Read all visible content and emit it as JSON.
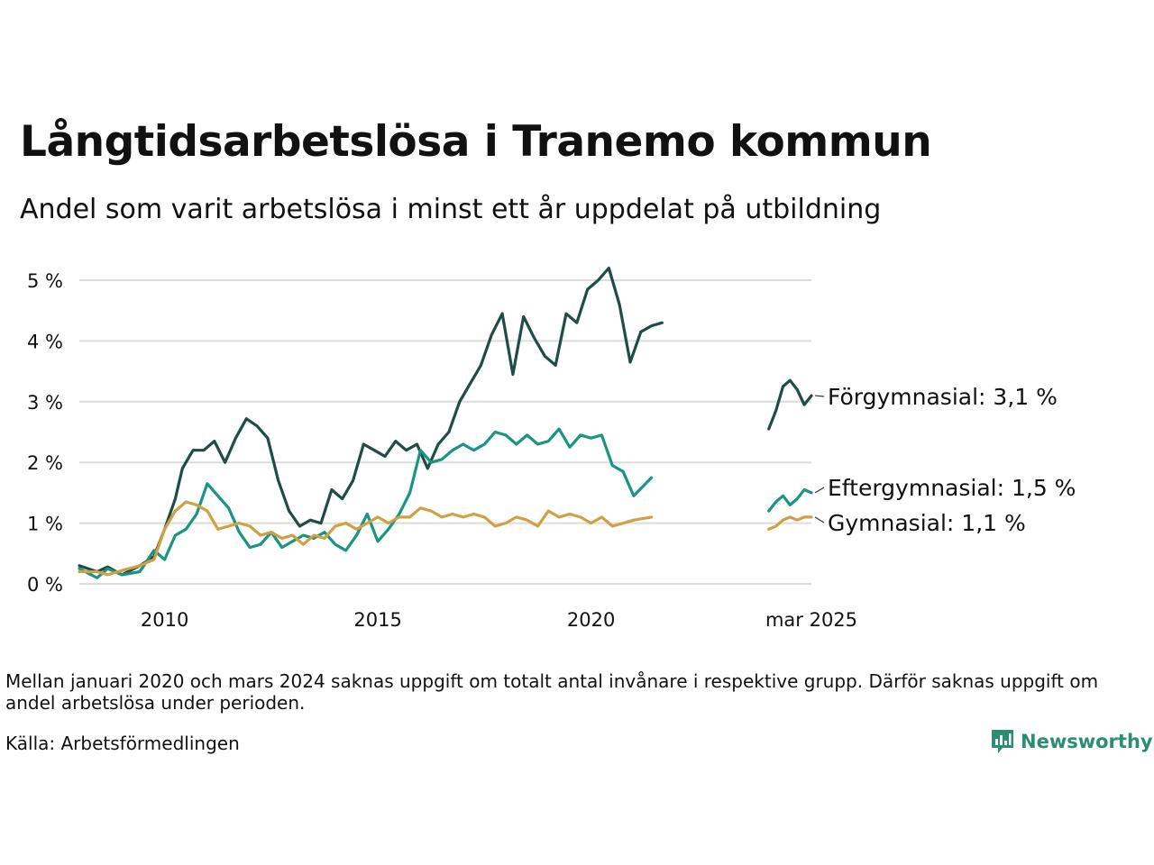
{
  "header": {
    "title": "Långtidsarbetslösa i Tranemo kommun",
    "subtitle": "Andel som varit arbetslösa i minst ett år uppdelat på utbildning"
  },
  "footer": {
    "note": "Mellan januari 2020 och mars 2024 saknas uppgift om totalt antal invånare i respektive grupp. Därför saknas uppgift om andel arbetslösa under perioden.",
    "source": "Källa: Arbetsförmedlingen",
    "logo_text": "Newsworthy",
    "logo_icon": "bar-chart-icon"
  },
  "chart_data": {
    "type": "line",
    "xlabel": "",
    "ylabel": "",
    "ylim": [
      0,
      5
    ],
    "xlim": [
      "2008-01",
      "2025-03"
    ],
    "grid": true,
    "y_ticks": [
      "0 %",
      "1 %",
      "2 %",
      "3 %",
      "4 %",
      "5 %"
    ],
    "x_ticks": [
      {
        "label": "2010",
        "date": "2010-01"
      },
      {
        "label": "2015",
        "date": "2015-01"
      },
      {
        "label": "2020",
        "date": "2020-01"
      },
      {
        "label": "mar 2025",
        "date": "2025-03"
      }
    ],
    "series": [
      {
        "name": "Förgymnasial",
        "end_label": "Förgymnasial: 3,1 %",
        "color": "#1f4d45",
        "segments": [
          [
            [
              "2008-01",
              0.3
            ],
            [
              "2008-06",
              0.2
            ],
            [
              "2008-09",
              0.28
            ],
            [
              "2009-01",
              0.15
            ],
            [
              "2009-06",
              0.3
            ],
            [
              "2009-10",
              0.45
            ],
            [
              "2010-01",
              0.9
            ],
            [
              "2010-04",
              1.4
            ],
            [
              "2010-06",
              1.9
            ],
            [
              "2010-09",
              2.2
            ],
            [
              "2010-12",
              2.2
            ],
            [
              "2011-03",
              2.35
            ],
            [
              "2011-06",
              2.0
            ],
            [
              "2011-09",
              2.4
            ],
            [
              "2011-12",
              2.72
            ],
            [
              "2012-03",
              2.6
            ],
            [
              "2012-06",
              2.4
            ],
            [
              "2012-09",
              1.7
            ],
            [
              "2012-12",
              1.2
            ],
            [
              "2013-03",
              0.95
            ],
            [
              "2013-06",
              1.05
            ],
            [
              "2013-09",
              1.0
            ],
            [
              "2013-12",
              1.55
            ],
            [
              "2014-03",
              1.4
            ],
            [
              "2014-06",
              1.7
            ],
            [
              "2014-09",
              2.3
            ],
            [
              "2014-12",
              2.2
            ],
            [
              "2015-03",
              2.1
            ],
            [
              "2015-06",
              2.35
            ],
            [
              "2015-09",
              2.2
            ],
            [
              "2015-12",
              2.3
            ],
            [
              "2016-03",
              1.9
            ],
            [
              "2016-06",
              2.3
            ],
            [
              "2016-09",
              2.5
            ],
            [
              "2016-12",
              3.0
            ],
            [
              "2017-03",
              3.3
            ],
            [
              "2017-06",
              3.6
            ],
            [
              "2017-09",
              4.1
            ],
            [
              "2017-12",
              4.45
            ],
            [
              "2018-03",
              3.45
            ],
            [
              "2018-06",
              4.4
            ],
            [
              "2018-09",
              4.05
            ],
            [
              "2018-12",
              3.75
            ],
            [
              "2019-03",
              3.6
            ],
            [
              "2019-06",
              4.45
            ],
            [
              "2019-09",
              4.3
            ],
            [
              "2019-12",
              4.85
            ],
            [
              "2020-03",
              5.0
            ],
            [
              "2020-06",
              5.2
            ],
            [
              "2020-09",
              4.6
            ],
            [
              "2020-12",
              3.65
            ],
            [
              "2021-03",
              4.15
            ],
            [
              "2021-06",
              4.25
            ],
            [
              "2021-09",
              4.3
            ]
          ],
          [
            [
              "2024-03",
              2.55
            ],
            [
              "2024-05",
              2.85
            ],
            [
              "2024-07",
              3.25
            ],
            [
              "2024-09",
              3.35
            ],
            [
              "2024-11",
              3.2
            ],
            [
              "2025-01",
              2.95
            ],
            [
              "2025-03",
              3.1
            ]
          ]
        ]
      },
      {
        "name": "Eftergymnasial",
        "end_label": "Eftergymnasial: 1,5 %",
        "color": "#1a9582",
        "segments": [
          [
            [
              "2008-01",
              0.25
            ],
            [
              "2008-06",
              0.1
            ],
            [
              "2008-09",
              0.25
            ],
            [
              "2009-01",
              0.15
            ],
            [
              "2009-06",
              0.2
            ],
            [
              "2009-10",
              0.55
            ],
            [
              "2010-01",
              0.4
            ],
            [
              "2010-04",
              0.8
            ],
            [
              "2010-07",
              0.9
            ],
            [
              "2010-10",
              1.15
            ],
            [
              "2011-01",
              1.65
            ],
            [
              "2011-04",
              1.45
            ],
            [
              "2011-07",
              1.25
            ],
            [
              "2011-10",
              0.85
            ],
            [
              "2012-01",
              0.6
            ],
            [
              "2012-04",
              0.65
            ],
            [
              "2012-07",
              0.85
            ],
            [
              "2012-10",
              0.6
            ],
            [
              "2013-01",
              0.7
            ],
            [
              "2013-04",
              0.8
            ],
            [
              "2013-07",
              0.75
            ],
            [
              "2013-10",
              0.85
            ],
            [
              "2014-01",
              0.65
            ],
            [
              "2014-04",
              0.55
            ],
            [
              "2014-07",
              0.8
            ],
            [
              "2014-10",
              1.15
            ],
            [
              "2015-01",
              0.7
            ],
            [
              "2015-04",
              0.9
            ],
            [
              "2015-07",
              1.15
            ],
            [
              "2015-10",
              1.5
            ],
            [
              "2016-01",
              2.2
            ],
            [
              "2016-04",
              2.0
            ],
            [
              "2016-07",
              2.05
            ],
            [
              "2016-10",
              2.2
            ],
            [
              "2017-01",
              2.3
            ],
            [
              "2017-04",
              2.2
            ],
            [
              "2017-07",
              2.3
            ],
            [
              "2017-10",
              2.5
            ],
            [
              "2018-01",
              2.45
            ],
            [
              "2018-04",
              2.3
            ],
            [
              "2018-07",
              2.45
            ],
            [
              "2018-10",
              2.3
            ],
            [
              "2019-01",
              2.35
            ],
            [
              "2019-04",
              2.55
            ],
            [
              "2019-07",
              2.25
            ],
            [
              "2019-10",
              2.45
            ],
            [
              "2020-01",
              2.4
            ],
            [
              "2020-04",
              2.45
            ],
            [
              "2020-07",
              1.95
            ],
            [
              "2020-10",
              1.85
            ],
            [
              "2021-01",
              1.45
            ],
            [
              "2021-06",
              1.75
            ]
          ],
          [
            [
              "2024-03",
              1.2
            ],
            [
              "2024-05",
              1.35
            ],
            [
              "2024-07",
              1.45
            ],
            [
              "2024-09",
              1.3
            ],
            [
              "2024-11",
              1.4
            ],
            [
              "2025-01",
              1.55
            ],
            [
              "2025-03",
              1.5
            ]
          ]
        ]
      },
      {
        "name": "Gymnasial",
        "end_label": "Gymnasial: 1,1 %",
        "color": "#d1a045",
        "segments": [
          [
            [
              "2008-01",
              0.2
            ],
            [
              "2008-06",
              0.2
            ],
            [
              "2008-09",
              0.15
            ],
            [
              "2009-01",
              0.22
            ],
            [
              "2009-06",
              0.3
            ],
            [
              "2009-10",
              0.4
            ],
            [
              "2010-01",
              0.9
            ],
            [
              "2010-04",
              1.2
            ],
            [
              "2010-07",
              1.35
            ],
            [
              "2010-10",
              1.3
            ],
            [
              "2011-01",
              1.2
            ],
            [
              "2011-04",
              0.9
            ],
            [
              "2011-07",
              0.95
            ],
            [
              "2011-10",
              1.0
            ],
            [
              "2012-01",
              0.95
            ],
            [
              "2012-04",
              0.8
            ],
            [
              "2012-07",
              0.85
            ],
            [
              "2012-10",
              0.75
            ],
            [
              "2013-01",
              0.8
            ],
            [
              "2013-04",
              0.65
            ],
            [
              "2013-07",
              0.8
            ],
            [
              "2013-10",
              0.75
            ],
            [
              "2014-01",
              0.95
            ],
            [
              "2014-04",
              1.0
            ],
            [
              "2014-07",
              0.9
            ],
            [
              "2014-10",
              1.0
            ],
            [
              "2015-01",
              1.1
            ],
            [
              "2015-04",
              1.0
            ],
            [
              "2015-07",
              1.1
            ],
            [
              "2015-10",
              1.1
            ],
            [
              "2016-01",
              1.25
            ],
            [
              "2016-04",
              1.2
            ],
            [
              "2016-07",
              1.1
            ],
            [
              "2016-10",
              1.15
            ],
            [
              "2017-01",
              1.1
            ],
            [
              "2017-04",
              1.15
            ],
            [
              "2017-07",
              1.1
            ],
            [
              "2017-10",
              0.95
            ],
            [
              "2018-01",
              1.0
            ],
            [
              "2018-04",
              1.1
            ],
            [
              "2018-07",
              1.05
            ],
            [
              "2018-10",
              0.95
            ],
            [
              "2019-01",
              1.2
            ],
            [
              "2019-04",
              1.1
            ],
            [
              "2019-07",
              1.15
            ],
            [
              "2019-10",
              1.1
            ],
            [
              "2020-01",
              1.0
            ],
            [
              "2020-04",
              1.1
            ],
            [
              "2020-07",
              0.95
            ],
            [
              "2020-10",
              1.0
            ],
            [
              "2021-01",
              1.05
            ],
            [
              "2021-06",
              1.1
            ]
          ],
          [
            [
              "2024-03",
              0.9
            ],
            [
              "2024-05",
              0.95
            ],
            [
              "2024-07",
              1.05
            ],
            [
              "2024-09",
              1.1
            ],
            [
              "2024-11",
              1.05
            ],
            [
              "2025-01",
              1.1
            ],
            [
              "2025-03",
              1.1
            ]
          ]
        ]
      }
    ]
  }
}
